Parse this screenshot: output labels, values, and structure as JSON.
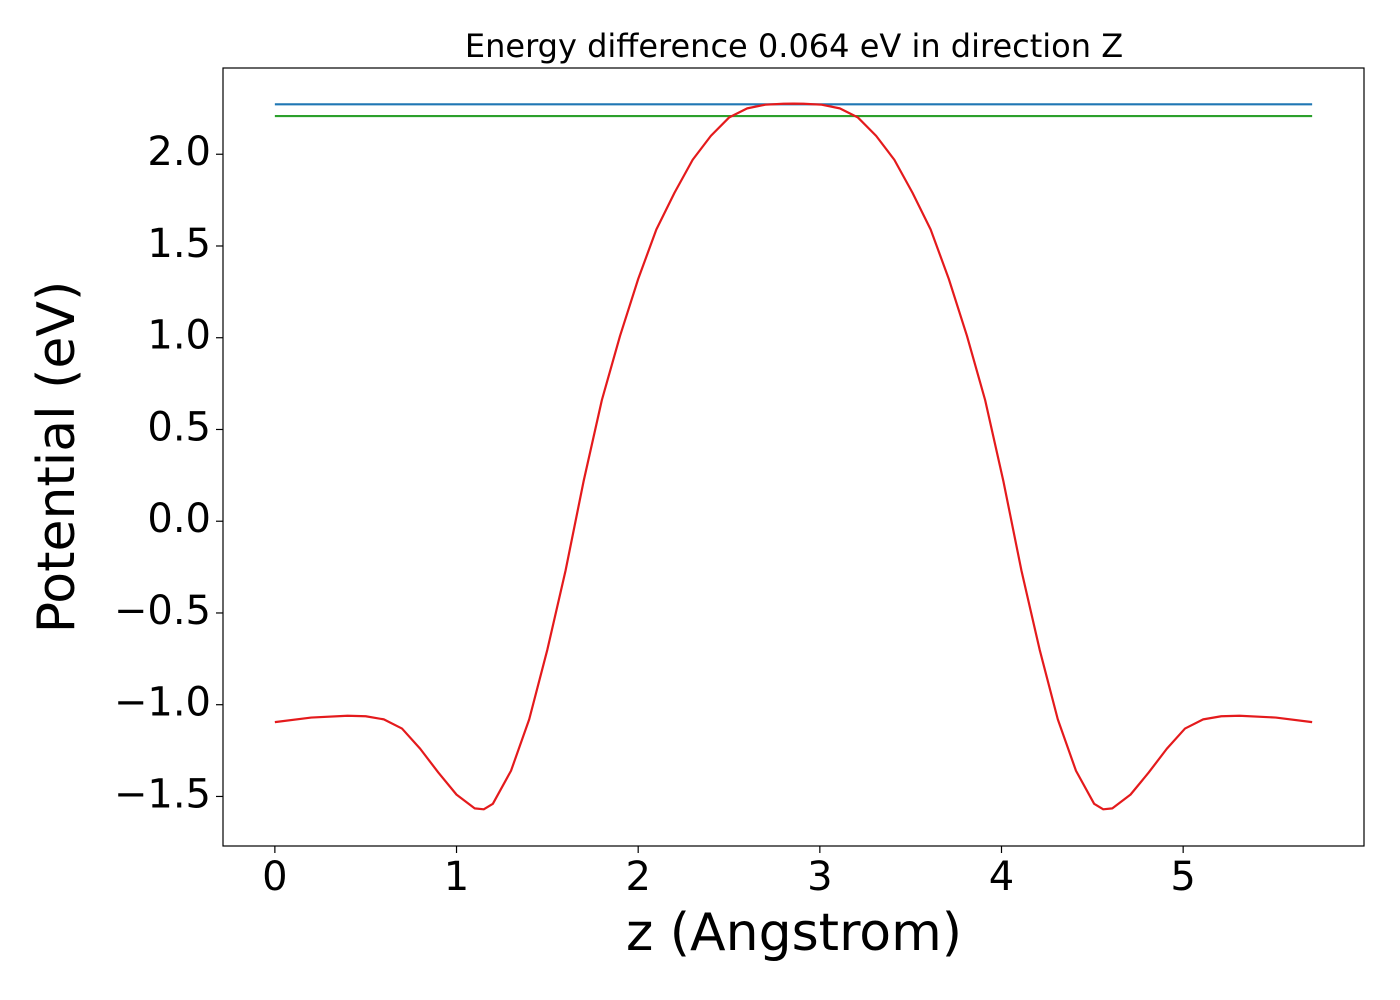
{
  "chart_data": {
    "type": "line",
    "title": "Energy difference 0.064 eV in direction Z",
    "x_label": "z (Angstrom)",
    "y_label": "Potential (eV)",
    "xlim": [
      -0.2855,
      5.9955
    ],
    "ylim": [
      -1.77,
      2.47
    ],
    "xticks": [
      0,
      1,
      2,
      3,
      4,
      5
    ],
    "yticks": [
      {
        "value": -1.5,
        "label": "−1.5"
      },
      {
        "value": -1.0,
        "label": "−1.0"
      },
      {
        "value": -0.5,
        "label": "−0.5"
      },
      {
        "value": 0,
        "label": "0.0"
      },
      0.5,
      {
        "value": 1.0,
        "label": "1.0"
      },
      1.5,
      {
        "value": 2.0,
        "label": "2.0"
      }
    ],
    "grid": false,
    "series": [
      {
        "color": "#1f77b4",
        "x": [
          0,
          5.71
        ],
        "values": [
          2.272,
          2.272
        ]
      },
      {
        "color": "#2ca02c",
        "x": [
          0,
          5.71
        ],
        "values": [
          2.208,
          2.208
        ]
      },
      {
        "color": "#e41a1c",
        "x": [
          0,
          0.2,
          0.4,
          0.5,
          0.6,
          0.7,
          0.8,
          0.9,
          1.0,
          1.1,
          1.15,
          1.2,
          1.3,
          1.4,
          1.5,
          1.6,
          1.7,
          1.8,
          1.9,
          2.0,
          2.1,
          2.2,
          2.3,
          2.4,
          2.5,
          2.6,
          2.7,
          2.8,
          2.855,
          2.91,
          3.01,
          3.11,
          3.21,
          3.31,
          3.41,
          3.51,
          3.61,
          3.71,
          3.81,
          3.91,
          4.01,
          4.11,
          4.21,
          4.31,
          4.41,
          4.51,
          4.56,
          4.61,
          4.71,
          4.81,
          4.91,
          5.01,
          5.11,
          5.21,
          5.31,
          5.51,
          5.71
        ],
        "values": [
          -1.095,
          -1.07,
          -1.06,
          -1.063,
          -1.08,
          -1.13,
          -1.24,
          -1.37,
          -1.49,
          -1.565,
          -1.57,
          -1.54,
          -1.36,
          -1.08,
          -0.7,
          -0.27,
          0.22,
          0.66,
          1.01,
          1.32,
          1.59,
          1.79,
          1.97,
          2.1,
          2.2,
          2.25,
          2.27,
          2.275,
          2.276,
          2.275,
          2.27,
          2.25,
          2.2,
          2.1,
          1.97,
          1.79,
          1.59,
          1.32,
          1.01,
          0.66,
          0.22,
          -0.27,
          -0.7,
          -1.08,
          -1.36,
          -1.54,
          -1.57,
          -1.565,
          -1.49,
          -1.37,
          -1.24,
          -1.13,
          -1.08,
          -1.063,
          -1.06,
          -1.07,
          -1.095
        ]
      }
    ]
  }
}
